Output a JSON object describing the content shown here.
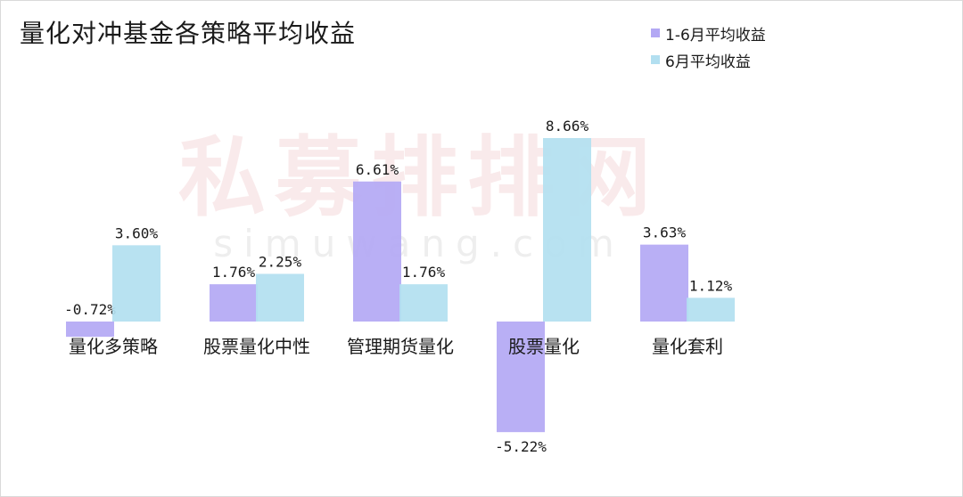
{
  "chart_data": {
    "type": "bar",
    "title": "量化对冲基金各策略平均收益",
    "categories": [
      "量化多策略",
      "股票量化中性",
      "管理期货量化",
      "股票量化",
      "量化套利"
    ],
    "series": [
      {
        "name": "1-6月平均收益",
        "color": "#b3a8f4",
        "values": [
          -0.72,
          1.76,
          6.61,
          -5.22,
          3.63
        ],
        "labels": [
          "-0.72%",
          "1.76%",
          "6.61%",
          "-5.22%",
          "3.63%"
        ]
      },
      {
        "name": "6月平均收益",
        "color": "#b2dff0",
        "values": [
          3.6,
          2.25,
          1.76,
          8.66,
          1.12
        ],
        "labels": [
          "3.60%",
          "2.25%",
          "1.76%",
          "8.66%",
          "1.12%"
        ]
      }
    ],
    "ylim": [
      -5.22,
      8.66
    ],
    "grid": false,
    "legend_position": "top-right"
  },
  "watermark": {
    "text_cn": "私募排排网",
    "text_en": "simuwang.com"
  }
}
